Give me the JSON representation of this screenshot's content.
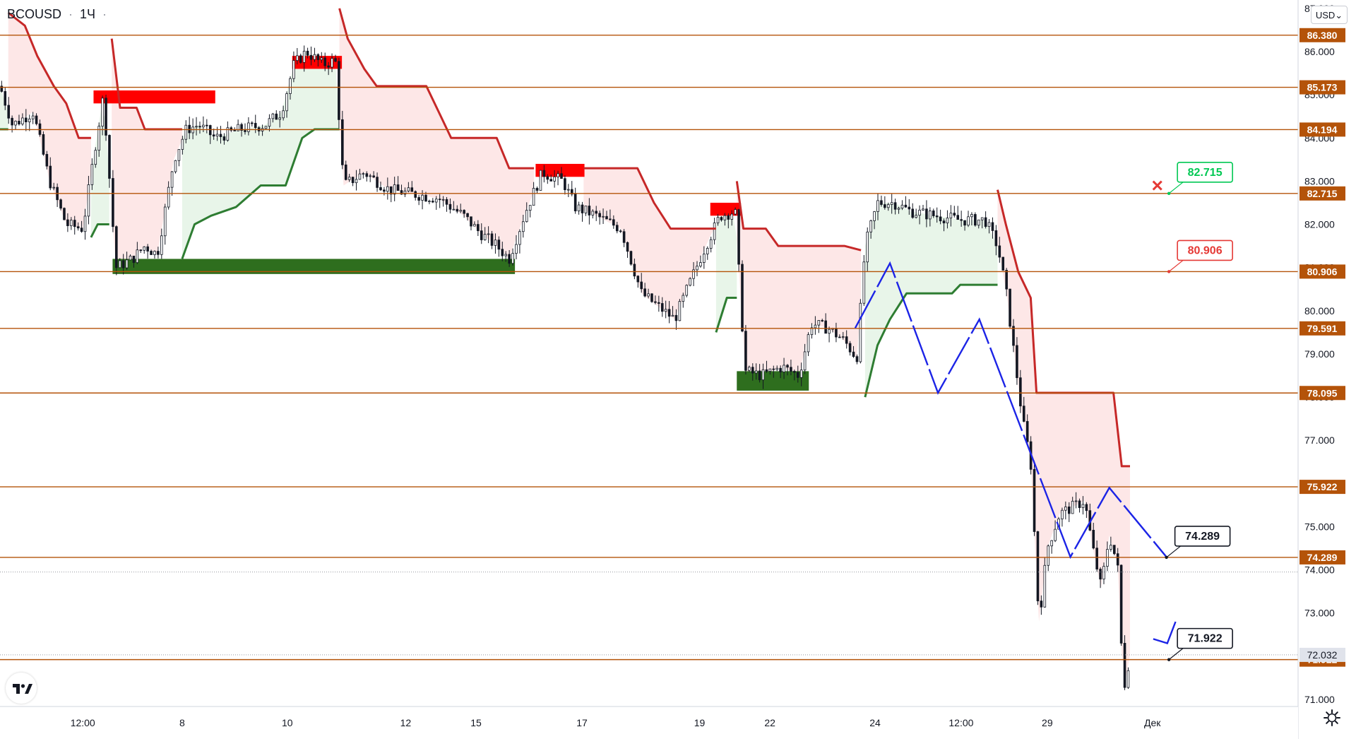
{
  "header": {
    "symbol": "BCOUSD",
    "interval": "1Ч",
    "currency_label": "USD"
  },
  "colors": {
    "level_line": "#b45309",
    "down_trail": "#c62828",
    "up_trail": "#2e7d32",
    "down_fill": "#fde7e7",
    "up_fill": "#e8f5e9",
    "arrow": "#1c24e6",
    "badge_green": "#00c853",
    "badge_red": "#e53935",
    "badge_dark": "#131722",
    "resistance_zone": "#ff0000",
    "support_zone": "#2e6e1e",
    "axis_label_level": "#b45309"
  },
  "chart_data": {
    "type": "candlestick",
    "instrument": "BCOUSD",
    "timeframe": "1Ч",
    "ylim": [
      70.85,
      87.0
    ],
    "y_ticks": [
      71.0,
      72.0,
      73.0,
      74.0,
      75.0,
      76.0,
      77.0,
      78.0,
      79.0,
      80.0,
      81.0,
      82.0,
      83.0,
      84.0,
      85.0,
      86.0,
      87.0
    ],
    "y_tick_labels": [
      "71.000",
      "72.000",
      "73.000",
      "74.000",
      "75.000",
      "76.000",
      "77.000",
      "78.000",
      "79.000",
      "80.000",
      "81.000",
      "82.000",
      "83.000",
      "84.000",
      "85.000",
      "86.000",
      "87.000"
    ],
    "x_tick_labels": [
      "12:00",
      "8",
      "10",
      "12",
      "15",
      "17",
      "19",
      "22",
      "24",
      "12:00",
      "29",
      "Дек"
    ],
    "levels": [
      86.38,
      85.173,
      84.194,
      82.715,
      80.906,
      79.591,
      78.095,
      75.922,
      74.289,
      71.922
    ],
    "level_labels": [
      "86.380",
      "85.173",
      "84.194",
      "82.715",
      "80.906",
      "79.591",
      "78.095",
      "75.922",
      "74.289",
      "71.922"
    ],
    "last_price": 72.032,
    "last_price_label": "72.032",
    "dotted_reference": 73.95,
    "price_path": [
      [
        0,
        85.2
      ],
      [
        15,
        84.3
      ],
      [
        40,
        84.6
      ],
      [
        60,
        83.0
      ],
      [
        80,
        82.0
      ],
      [
        100,
        81.9
      ],
      [
        115,
        83.8
      ],
      [
        125,
        85.0
      ],
      [
        140,
        81.0
      ],
      [
        160,
        81.2
      ],
      [
        175,
        81.5
      ],
      [
        190,
        81.3
      ],
      [
        210,
        83.5
      ],
      [
        225,
        84.2
      ],
      [
        240,
        84.3
      ],
      [
        260,
        84.0
      ],
      [
        290,
        84.2
      ],
      [
        320,
        84.3
      ],
      [
        340,
        84.6
      ],
      [
        355,
        85.7
      ],
      [
        370,
        86.0
      ],
      [
        390,
        85.7
      ],
      [
        405,
        85.8
      ],
      [
        415,
        82.9
      ],
      [
        440,
        83.2
      ],
      [
        470,
        82.8
      ],
      [
        500,
        82.7
      ],
      [
        530,
        82.6
      ],
      [
        560,
        82.2
      ],
      [
        580,
        81.8
      ],
      [
        600,
        81.5
      ],
      [
        615,
        81.2
      ],
      [
        635,
        82.3
      ],
      [
        655,
        83.2
      ],
      [
        680,
        83.0
      ],
      [
        695,
        82.4
      ],
      [
        720,
        82.2
      ],
      [
        750,
        81.9
      ],
      [
        775,
        80.4
      ],
      [
        795,
        80.1
      ],
      [
        815,
        79.8
      ],
      [
        830,
        80.5
      ],
      [
        850,
        81.4
      ],
      [
        870,
        82.2
      ],
      [
        888,
        82.3
      ],
      [
        900,
        78.6
      ],
      [
        920,
        78.5
      ],
      [
        945,
        78.7
      ],
      [
        965,
        78.5
      ],
      [
        980,
        79.7
      ],
      [
        1000,
        79.6
      ],
      [
        1020,
        79.3
      ],
      [
        1035,
        78.9
      ],
      [
        1045,
        81.5
      ],
      [
        1060,
        82.5
      ],
      [
        1080,
        82.5
      ],
      [
        1100,
        82.3
      ],
      [
        1130,
        82.2
      ],
      [
        1160,
        82.1
      ],
      [
        1190,
        82.1
      ],
      [
        1205,
        81.5
      ],
      [
        1215,
        80.5
      ],
      [
        1225,
        79.0
      ],
      [
        1235,
        77.5
      ],
      [
        1245,
        76.5
      ],
      [
        1255,
        72.8
      ],
      [
        1265,
        74.5
      ],
      [
        1280,
        75.3
      ],
      [
        1300,
        75.5
      ],
      [
        1310,
        75.6
      ],
      [
        1320,
        74.5
      ],
      [
        1330,
        73.6
      ],
      [
        1340,
        74.8
      ],
      [
        1350,
        74.1
      ],
      [
        1357,
        71.2
      ],
      [
        1365,
        72.03
      ]
    ],
    "trail_down_segments": [
      [
        [
          10,
          86.9
        ],
        [
          30,
          86.6
        ],
        [
          45,
          85.9
        ],
        [
          65,
          85.2
        ],
        [
          80,
          84.8
        ],
        [
          95,
          84.0
        ],
        [
          110,
          84.0
        ]
      ],
      [
        [
          135,
          86.3
        ],
        [
          145,
          84.7
        ],
        [
          165,
          84.7
        ],
        [
          175,
          84.2
        ],
        [
          220,
          84.2
        ]
      ],
      [
        [
          410,
          87.0
        ],
        [
          420,
          86.3
        ],
        [
          440,
          85.6
        ],
        [
          455,
          85.2
        ],
        [
          515,
          85.2
        ],
        [
          530,
          84.6
        ],
        [
          545,
          84.0
        ],
        [
          600,
          84.0
        ],
        [
          615,
          83.3
        ],
        [
          645,
          83.3
        ]
      ],
      [
        [
          705,
          83.3
        ],
        [
          770,
          83.3
        ],
        [
          790,
          82.5
        ],
        [
          810,
          81.9
        ],
        [
          865,
          81.9
        ]
      ],
      [
        [
          890,
          83.0
        ],
        [
          898,
          81.9
        ],
        [
          925,
          81.9
        ],
        [
          940,
          81.5
        ],
        [
          1020,
          81.5
        ],
        [
          1040,
          81.4
        ]
      ],
      [
        [
          1205,
          82.8
        ],
        [
          1215,
          82.0
        ],
        [
          1230,
          80.9
        ],
        [
          1245,
          80.3
        ],
        [
          1252,
          78.1
        ],
        [
          1345,
          78.1
        ],
        [
          1355,
          76.4
        ],
        [
          1365,
          76.4
        ]
      ]
    ],
    "trail_up_segments": [
      [
        [
          0,
          84.2
        ],
        [
          10,
          84.2
        ]
      ],
      [
        [
          110,
          81.7
        ],
        [
          118,
          82.0
        ],
        [
          132,
          82.0
        ]
      ],
      [
        [
          220,
          81.2
        ],
        [
          235,
          82.0
        ],
        [
          255,
          82.2
        ],
        [
          285,
          82.4
        ],
        [
          315,
          82.9
        ],
        [
          345,
          82.9
        ],
        [
          365,
          84.0
        ],
        [
          380,
          84.2
        ],
        [
          410,
          84.2
        ]
      ],
      [
        [
          865,
          79.5
        ],
        [
          878,
          80.3
        ],
        [
          890,
          80.3
        ]
      ],
      [
        [
          1045,
          78.0
        ],
        [
          1060,
          79.2
        ],
        [
          1075,
          79.8
        ],
        [
          1095,
          80.4
        ],
        [
          1150,
          80.4
        ],
        [
          1160,
          80.6
        ],
        [
          1205,
          80.6
        ]
      ]
    ],
    "resistance_zones": [
      [
        113,
        85.1,
        260,
        84.8
      ],
      [
        353,
        85.9,
        413,
        85.6
      ],
      [
        647,
        83.4,
        706,
        83.1
      ],
      [
        858,
        82.5,
        895,
        82.2
      ]
    ],
    "support_zones": [
      [
        136,
        81.2,
        622,
        80.85
      ],
      [
        890,
        78.6,
        977,
        78.15
      ]
    ],
    "projection_path": [
      [
        1033,
        79.6
      ],
      [
        1075,
        81.1
      ],
      [
        1133,
        78.1
      ],
      [
        1183,
        79.8
      ],
      [
        1293,
        74.3
      ],
      [
        1340,
        75.9
      ],
      [
        1409,
        74.3
      ]
    ],
    "projection_tail": [
      [
        1393,
        72.4
      ],
      [
        1410,
        72.3
      ],
      [
        1420,
        72.8
      ]
    ],
    "x_cross": [
      1398,
      82.9
    ],
    "badges": [
      {
        "label": "82.715",
        "kind": "green",
        "anchor_x": 1412,
        "anchor_price": 82.715
      },
      {
        "label": "80.906",
        "kind": "red",
        "anchor_x": 1412,
        "anchor_price": 80.906
      },
      {
        "label": "74.289",
        "kind": "dark",
        "anchor_x": 1409,
        "anchor_price": 74.289
      },
      {
        "label": "71.922",
        "kind": "dark",
        "anchor_x": 1412,
        "anchor_price": 71.922
      }
    ]
  }
}
